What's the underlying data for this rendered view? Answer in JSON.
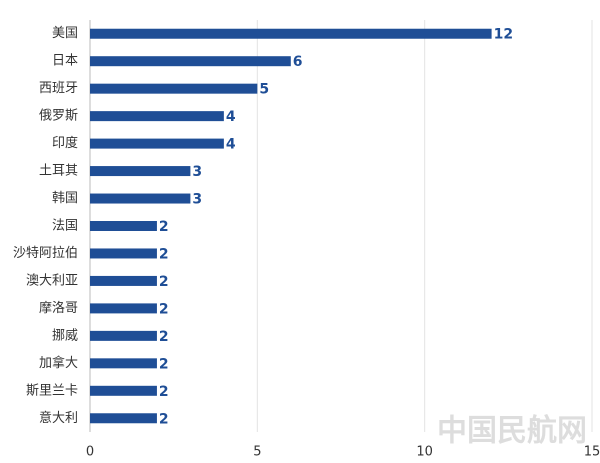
{
  "chart_data": {
    "type": "hbar",
    "categories": [
      "美国",
      "日本",
      "西班牙",
      "俄罗斯",
      "印度",
      "土耳其",
      "韩国",
      "法国",
      "沙特阿拉伯",
      "澳大利亚",
      "摩洛哥",
      "挪威",
      "加拿大",
      "斯里兰卡",
      "意大利"
    ],
    "values": [
      12,
      6,
      5,
      4,
      4,
      3,
      3,
      2,
      2,
      2,
      2,
      2,
      2,
      2,
      2
    ],
    "color": "#1f4e96",
    "xlim": [
      0,
      15
    ],
    "xticks": [
      0,
      5,
      10,
      15
    ],
    "grid": true,
    "watermark": "中国民航网"
  }
}
